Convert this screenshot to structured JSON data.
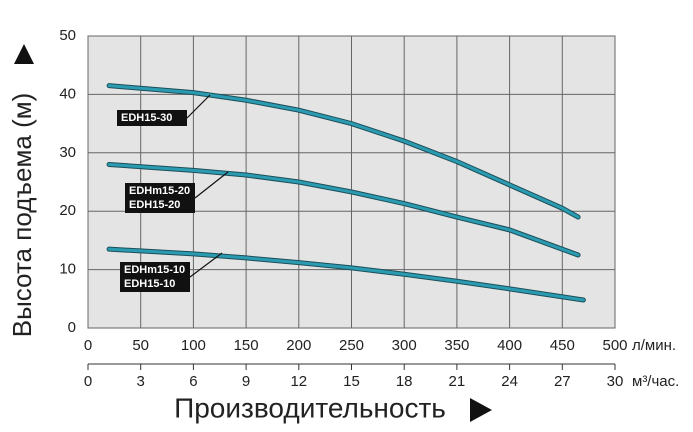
{
  "chart_data": {
    "type": "line",
    "y_title": "Высота подъема (м)",
    "x_title": "Производительность",
    "x_unit": "л/мин.",
    "x2_unit": "м³/час.",
    "xlim": [
      0,
      500
    ],
    "xticks": [
      0,
      50,
      100,
      150,
      200,
      250,
      300,
      350,
      400,
      450,
      500
    ],
    "x2lim": [
      0,
      30
    ],
    "x2ticks": [
      0,
      3,
      6,
      9,
      12,
      15,
      18,
      21,
      24,
      27,
      30
    ],
    "ylim": [
      0,
      50
    ],
    "yticks": [
      0,
      10,
      20,
      30,
      40,
      50
    ],
    "grid": true,
    "series": [
      {
        "labels": [
          "EDH15-30"
        ],
        "color": "#2a9bb0",
        "x": [
          20,
          100,
          150,
          200,
          250,
          300,
          350,
          400,
          450,
          465
        ],
        "values": [
          41.5,
          40.3,
          39,
          37.3,
          35,
          32,
          28.5,
          24.5,
          20.5,
          19
        ]
      },
      {
        "labels": [
          "EDHm15-20",
          "EDH15-20"
        ],
        "color": "#2a9bb0",
        "x": [
          20,
          100,
          150,
          200,
          250,
          300,
          350,
          400,
          465
        ],
        "values": [
          28,
          27,
          26.2,
          25,
          23.3,
          21.3,
          19,
          16.8,
          12.5
        ]
      },
      {
        "labels": [
          "EDHm15-10",
          "EDH15-10"
        ],
        "color": "#2a9bb0",
        "x": [
          20,
          100,
          150,
          200,
          250,
          300,
          350,
          400,
          470
        ],
        "values": [
          13.5,
          12.7,
          12,
          11.2,
          10.3,
          9.2,
          8,
          6.7,
          4.8
        ]
      }
    ]
  }
}
